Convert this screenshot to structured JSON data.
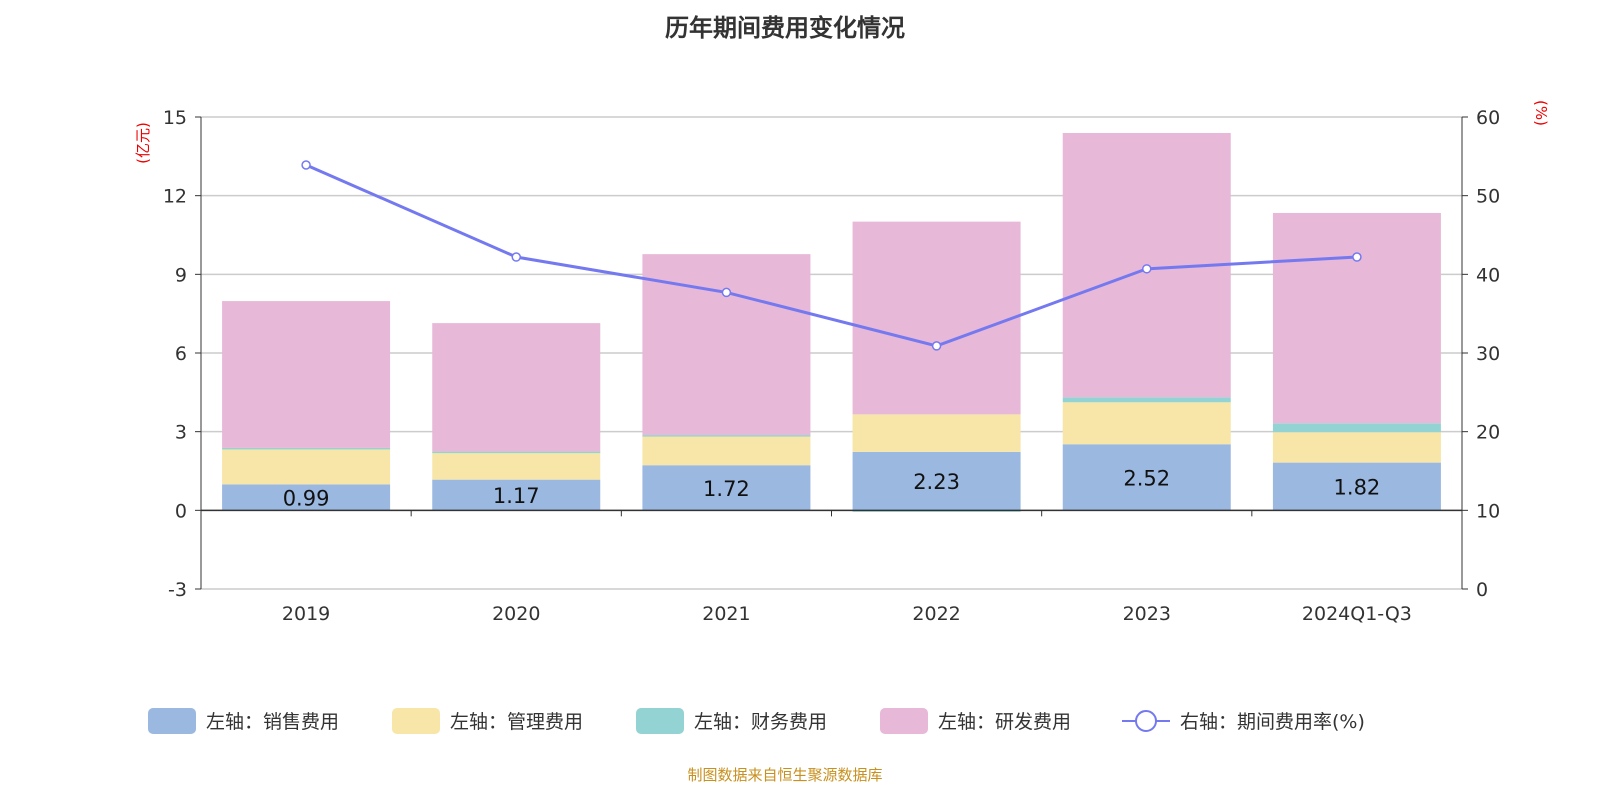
{
  "title": "历年期间费用变化情况",
  "source": "制图数据来自恒生聚源数据库",
  "chart_data": {
    "type": "bar",
    "stacked": true,
    "title": "历年期间费用变化情况",
    "categories": [
      "2019",
      "2020",
      "2021",
      "2022",
      "2023",
      "2024Q1-Q3"
    ],
    "left_axis": {
      "unit": "(亿元)",
      "ylim": [
        -3,
        15
      ],
      "ticks": [
        -3,
        0,
        3,
        6,
        9,
        12,
        15
      ]
    },
    "right_axis": {
      "unit": "(%)",
      "ylim": [
        0,
        60
      ],
      "ticks": [
        0,
        10,
        20,
        30,
        40,
        50,
        60
      ]
    },
    "grid": true,
    "legend_position": "bottom",
    "series": [
      {
        "name": "左轴：销售费用",
        "axis": "left",
        "type": "bar",
        "color": "#9bb8e0",
        "values": [
          0.99,
          1.17,
          1.72,
          2.23,
          2.52,
          1.82
        ],
        "show_labels": true
      },
      {
        "name": "左轴：管理费用",
        "axis": "left",
        "type": "bar",
        "color": "#f7e6a8",
        "values": [
          1.38,
          1.04,
          1.14,
          1.43,
          1.6,
          1.16
        ]
      },
      {
        "name": "左轴：财务费用",
        "axis": "left",
        "type": "bar",
        "color": "#94d3d3",
        "values": [
          0.01,
          0.03,
          0.01,
          -0.05,
          0.19,
          0.34
        ]
      },
      {
        "name": "左轴：研发费用",
        "axis": "left",
        "type": "bar",
        "color": "#e7b8d7",
        "values": [
          5.6,
          4.9,
          6.9,
          7.35,
          10.08,
          8.02
        ]
      },
      {
        "name": "右轴：期间费用率(%)",
        "axis": "right",
        "type": "line",
        "color": "#7479f0",
        "values": [
          53.9,
          42.2,
          37.7,
          30.9,
          40.7,
          42.2
        ]
      }
    ]
  }
}
